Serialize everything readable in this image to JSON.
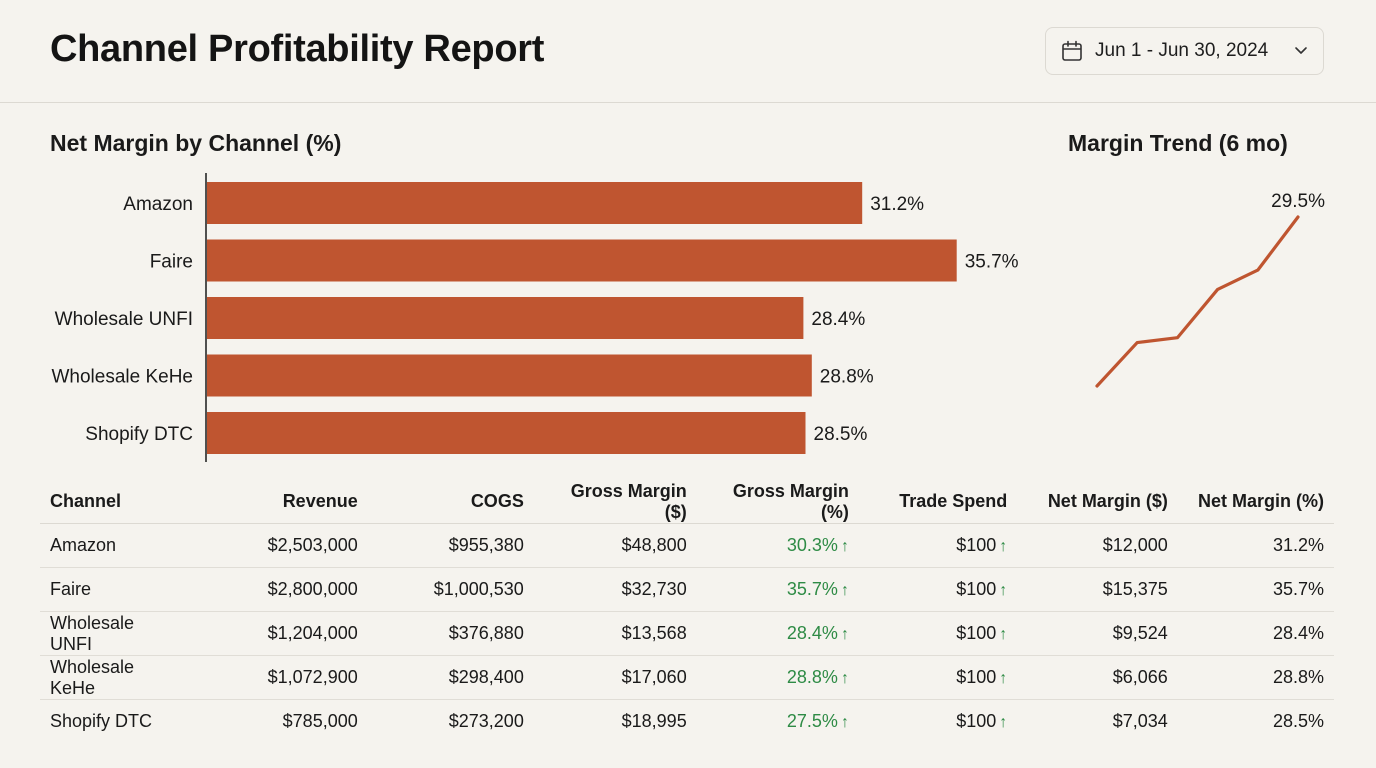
{
  "header": {
    "title": "Channel Profitability Report",
    "date_range": "Jun 1 - Jun 30, 2024",
    "calendar_icon": "calendar-icon",
    "dropdown_icon": "chevron-down-icon"
  },
  "colors": {
    "bar": "#bf5530",
    "line": "#bf5530",
    "positive": "#2e8b45",
    "background": "#f5f3ee"
  },
  "chart_data": [
    {
      "type": "bar",
      "orientation": "horizontal",
      "title": "Net Margin by Channel (%)",
      "categories": [
        "Amazon",
        "Faire",
        "Wholesale UNFI",
        "Wholesale KeHe",
        "Shopify DTC"
      ],
      "values": [
        31.2,
        35.7,
        28.4,
        28.8,
        28.5
      ],
      "data_labels": [
        "31.2%",
        "35.7%",
        "28.4%",
        "28.8%",
        "28.5%"
      ],
      "xlabel": "",
      "ylabel": "",
      "xlim": [
        0,
        36
      ],
      "grid": false
    },
    {
      "type": "line",
      "title": "Margin Trend (6 mo)",
      "x": [
        1,
        2,
        3,
        4,
        5,
        6
      ],
      "values": [
        26.0,
        26.9,
        27.0,
        28.0,
        28.4,
        29.5
      ],
      "end_label": "29.5%",
      "grid": false,
      "axes": false
    }
  ],
  "table": {
    "columns": [
      "Channel",
      "Revenue",
      "COGS",
      "Gross Margin ($)",
      "Gross Margin (%)",
      "Trade Spend",
      "Net Margin ($)",
      "Net Margin (%)"
    ],
    "rows": [
      {
        "channel": "Amazon",
        "revenue": "$2,503,000",
        "cogs": "$955,380",
        "gm_usd": "$48,800",
        "gm_pct": "30.3%",
        "gm_pct_trend": "↑",
        "trade_spend": "$100",
        "trade_trend": "↑",
        "nm_usd": "$12,000",
        "nm_pct": "31.2%"
      },
      {
        "channel": "Faire",
        "revenue": "$2,800,000",
        "cogs": "$1,000,530",
        "gm_usd": "$32,730",
        "gm_pct": "35.7%",
        "gm_pct_trend": "↑",
        "trade_spend": "$100",
        "trade_trend": "↑",
        "nm_usd": "$15,375",
        "nm_pct": "35.7%"
      },
      {
        "channel": "Wholesale UNFI",
        "revenue": "$1,204,000",
        "cogs": "$376,880",
        "gm_usd": "$13,568",
        "gm_pct": "28.4%",
        "gm_pct_trend": "↑",
        "trade_spend": "$100",
        "trade_trend": "↑",
        "nm_usd": "$9,524",
        "nm_pct": "28.4%"
      },
      {
        "channel": "Wholesale KeHe",
        "revenue": "$1,072,900",
        "cogs": "$298,400",
        "gm_usd": "$17,060",
        "gm_pct": "28.8%",
        "gm_pct_trend": "↑",
        "trade_spend": "$100",
        "trade_trend": "↑",
        "nm_usd": "$6,066",
        "nm_pct": "28.8%"
      },
      {
        "channel": "Shopify DTC",
        "revenue": "$785,000",
        "cogs": "$273,200",
        "gm_usd": "$18,995",
        "gm_pct": "27.5%",
        "gm_pct_trend": "↑",
        "trade_spend": "$100",
        "trade_trend": "↑",
        "nm_usd": "$7,034",
        "nm_pct": "28.5%"
      }
    ]
  }
}
